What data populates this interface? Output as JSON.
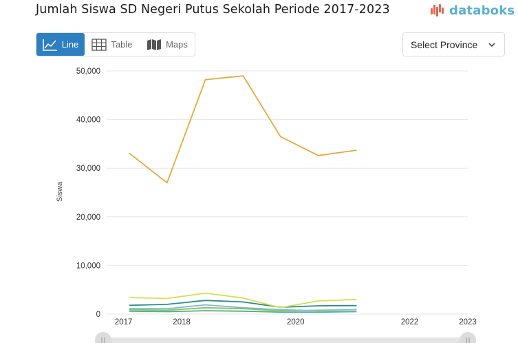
{
  "header": {
    "title": "Jumlah Siswa SD Negeri Putus Sekolah Periode 2017-2023",
    "logo_text": "databoks"
  },
  "view_toggle": {
    "line_label": "Line",
    "table_label": "Table",
    "maps_label": "Maps",
    "active": "line"
  },
  "province_select": {
    "label": "Select Province"
  },
  "chart_data": {
    "type": "line",
    "title": "",
    "xlabel": "",
    "ylabel": "Siswa",
    "x_tick_labels": [
      {
        "label": "2017",
        "value": 2016.9
      },
      {
        "label": "2018",
        "value": 2017.93
      },
      {
        "label": "2020",
        "value": 2019.95
      },
      {
        "label": "2022",
        "value": 2021.97
      },
      {
        "label": "2023",
        "value": 2023.0
      }
    ],
    "xlim": [
      2016.6,
      2023.0
    ],
    "ylim": [
      0,
      50000
    ],
    "y_ticks": [
      {
        "label": "0",
        "value": 0
      },
      {
        "label": "10,000",
        "value": 10000
      },
      {
        "label": "20,000",
        "value": 20000
      },
      {
        "label": "30,000",
        "value": 30000
      },
      {
        "label": "40,000",
        "value": 40000
      },
      {
        "label": "50,000",
        "value": 50000
      }
    ],
    "grid": true,
    "legend": "none",
    "x": [
      2017.0,
      2017.67,
      2018.35,
      2019.02,
      2019.68,
      2020.35,
      2021.03
    ],
    "series": [
      {
        "color": "#e8a838",
        "values": [
          33100,
          27000,
          48200,
          49000,
          36500,
          32600,
          33700
        ]
      },
      {
        "color": "#d4df4a",
        "values": [
          3400,
          3200,
          4300,
          3300,
          1300,
          2700,
          3000
        ]
      },
      {
        "color": "#2a8c8c",
        "values": [
          1800,
          2000,
          2800,
          2500,
          1400,
          1700,
          1750
        ]
      },
      {
        "color": "#7fb8dc",
        "values": [
          1100,
          1100,
          1900,
          1300,
          900,
          700,
          900
        ]
      },
      {
        "color": "#8bc34a",
        "values": [
          900,
          800,
          1300,
          1100,
          700,
          800,
          900
        ]
      },
      {
        "color": "#4caf8a",
        "values": [
          600,
          500,
          700,
          600,
          400,
          400,
          500
        ]
      }
    ]
  }
}
